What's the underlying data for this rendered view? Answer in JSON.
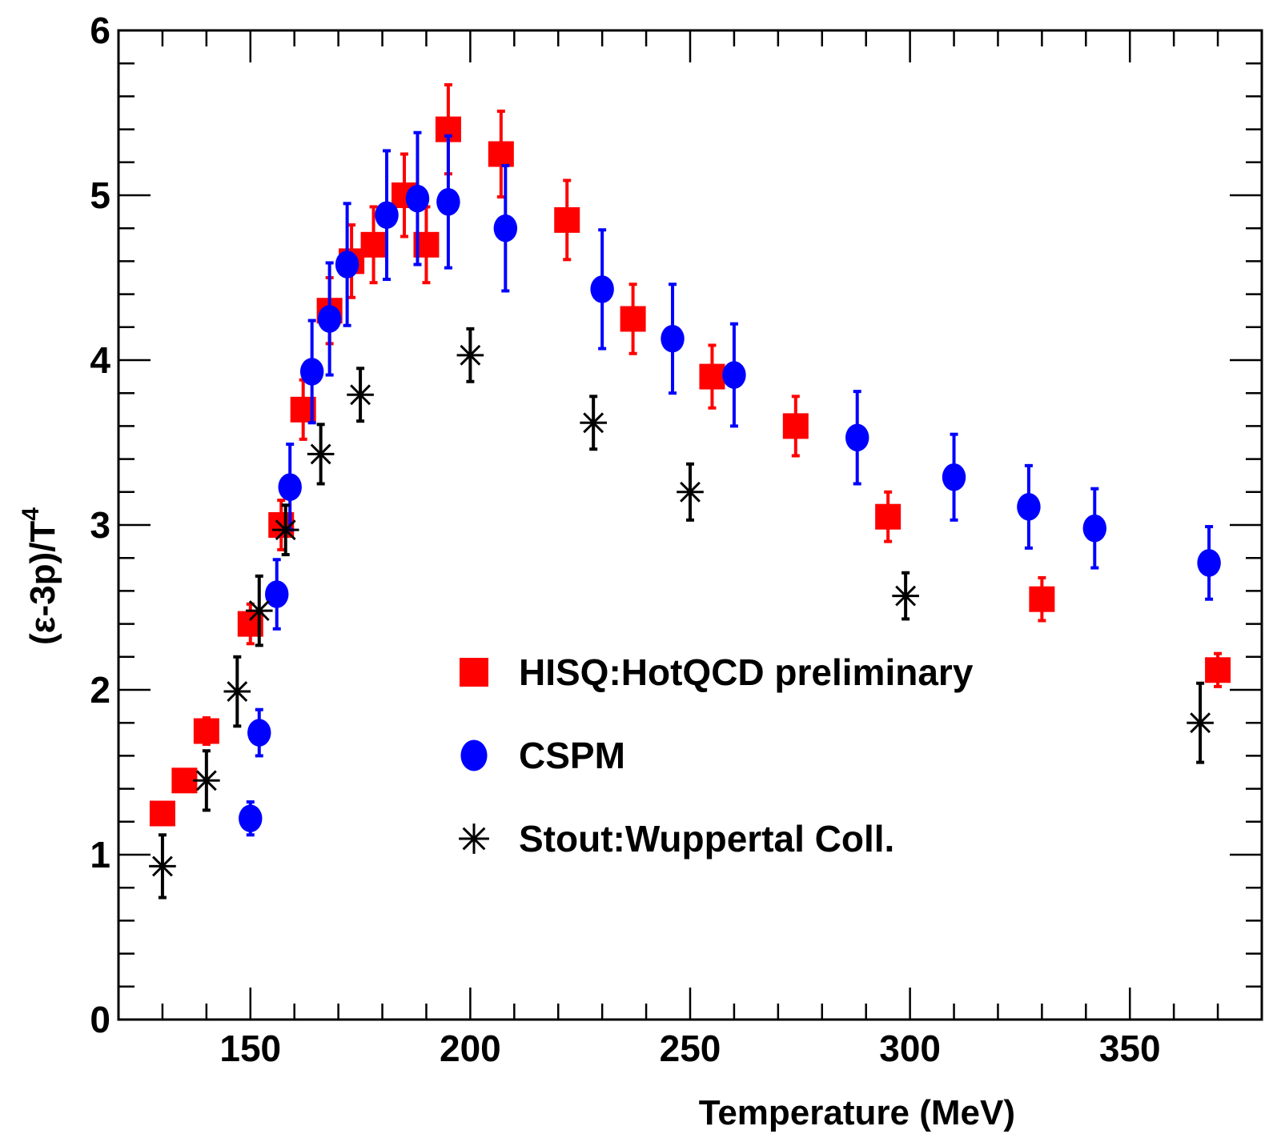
{
  "chart_data": {
    "type": "scatter",
    "title": "",
    "xlabel": "Temperature (MeV)",
    "ylabel": "(ε-3p)/T",
    "ylabel_superscript": "4",
    "xlim": [
      120,
      380
    ],
    "ylim": [
      0,
      6
    ],
    "x_ticks": [
      {
        "value": 150,
        "label": "150"
      },
      {
        "value": 200,
        "label": "200"
      },
      {
        "value": 250,
        "label": "250"
      },
      {
        "value": 300,
        "label": "300"
      },
      {
        "value": 350,
        "label": "350"
      }
    ],
    "y_ticks": [
      {
        "value": 0,
        "label": "0"
      },
      {
        "value": 1,
        "label": "1"
      },
      {
        "value": 2,
        "label": "2"
      },
      {
        "value": 3,
        "label": "3"
      },
      {
        "value": 4,
        "label": "4"
      },
      {
        "value": 5,
        "label": "5"
      },
      {
        "value": 6,
        "label": "6"
      }
    ],
    "legend_position": "center",
    "series": [
      {
        "name": "HISQ:HotQCD preliminary",
        "marker": "square",
        "color": "#ff0000",
        "points": [
          {
            "x": 130,
            "y": 1.25,
            "err": 0.05
          },
          {
            "x": 135,
            "y": 1.45,
            "err": 0.05
          },
          {
            "x": 140,
            "y": 1.75,
            "err": 0.08
          },
          {
            "x": 150,
            "y": 2.4,
            "err": 0.12
          },
          {
            "x": 157,
            "y": 3.0,
            "err": 0.15
          },
          {
            "x": 162,
            "y": 3.7,
            "err": 0.18
          },
          {
            "x": 168,
            "y": 4.3,
            "err": 0.2
          },
          {
            "x": 173,
            "y": 4.6,
            "err": 0.22
          },
          {
            "x": 178,
            "y": 4.7,
            "err": 0.23
          },
          {
            "x": 185,
            "y": 5.0,
            "err": 0.25
          },
          {
            "x": 190,
            "y": 4.7,
            "err": 0.23
          },
          {
            "x": 195,
            "y": 5.4,
            "err": 0.27
          },
          {
            "x": 207,
            "y": 5.25,
            "err": 0.26
          },
          {
            "x": 222,
            "y": 4.85,
            "err": 0.24
          },
          {
            "x": 237,
            "y": 4.25,
            "err": 0.21
          },
          {
            "x": 255,
            "y": 3.9,
            "err": 0.19
          },
          {
            "x": 274,
            "y": 3.6,
            "err": 0.18
          },
          {
            "x": 295,
            "y": 3.05,
            "err": 0.15
          },
          {
            "x": 330,
            "y": 2.55,
            "err": 0.13
          },
          {
            "x": 370,
            "y": 2.12,
            "err": 0.1
          }
        ]
      },
      {
        "name": "CSPM",
        "marker": "circle",
        "color": "#0000ff",
        "points": [
          {
            "x": 150,
            "y": 1.22,
            "err": 0.1
          },
          {
            "x": 152,
            "y": 1.74,
            "err": 0.14
          },
          {
            "x": 156,
            "y": 2.58,
            "err": 0.21
          },
          {
            "x": 159,
            "y": 3.23,
            "err": 0.26
          },
          {
            "x": 164,
            "y": 3.93,
            "err": 0.31
          },
          {
            "x": 168,
            "y": 4.25,
            "err": 0.34
          },
          {
            "x": 172,
            "y": 4.58,
            "err": 0.37
          },
          {
            "x": 181,
            "y": 4.88,
            "err": 0.39
          },
          {
            "x": 188,
            "y": 4.98,
            "err": 0.4
          },
          {
            "x": 195,
            "y": 4.96,
            "err": 0.4
          },
          {
            "x": 208,
            "y": 4.8,
            "err": 0.38
          },
          {
            "x": 230,
            "y": 4.43,
            "err": 0.36
          },
          {
            "x": 246,
            "y": 4.13,
            "err": 0.33
          },
          {
            "x": 260,
            "y": 3.91,
            "err": 0.31
          },
          {
            "x": 288,
            "y": 3.53,
            "err": 0.28
          },
          {
            "x": 310,
            "y": 3.29,
            "err": 0.26
          },
          {
            "x": 327,
            "y": 3.11,
            "err": 0.25
          },
          {
            "x": 342,
            "y": 2.98,
            "err": 0.24
          },
          {
            "x": 368,
            "y": 2.77,
            "err": 0.22
          }
        ]
      },
      {
        "name": "Stout:Wuppertal Coll.",
        "marker": "star",
        "color": "#000000",
        "points": [
          {
            "x": 130,
            "y": 0.93,
            "err": 0.19
          },
          {
            "x": 140,
            "y": 1.45,
            "err": 0.18
          },
          {
            "x": 147,
            "y": 1.99,
            "err": 0.21
          },
          {
            "x": 152,
            "y": 2.48,
            "err": 0.21
          },
          {
            "x": 158,
            "y": 2.97,
            "err": 0.15
          },
          {
            "x": 166,
            "y": 3.43,
            "err": 0.18
          },
          {
            "x": 175,
            "y": 3.79,
            "err": 0.16
          },
          {
            "x": 200,
            "y": 4.03,
            "err": 0.16
          },
          {
            "x": 228,
            "y": 3.62,
            "err": 0.16
          },
          {
            "x": 250,
            "y": 3.2,
            "err": 0.17
          },
          {
            "x": 299,
            "y": 2.57,
            "err": 0.14
          },
          {
            "x": 366,
            "y": 1.8,
            "err": 0.24
          }
        ]
      }
    ]
  }
}
